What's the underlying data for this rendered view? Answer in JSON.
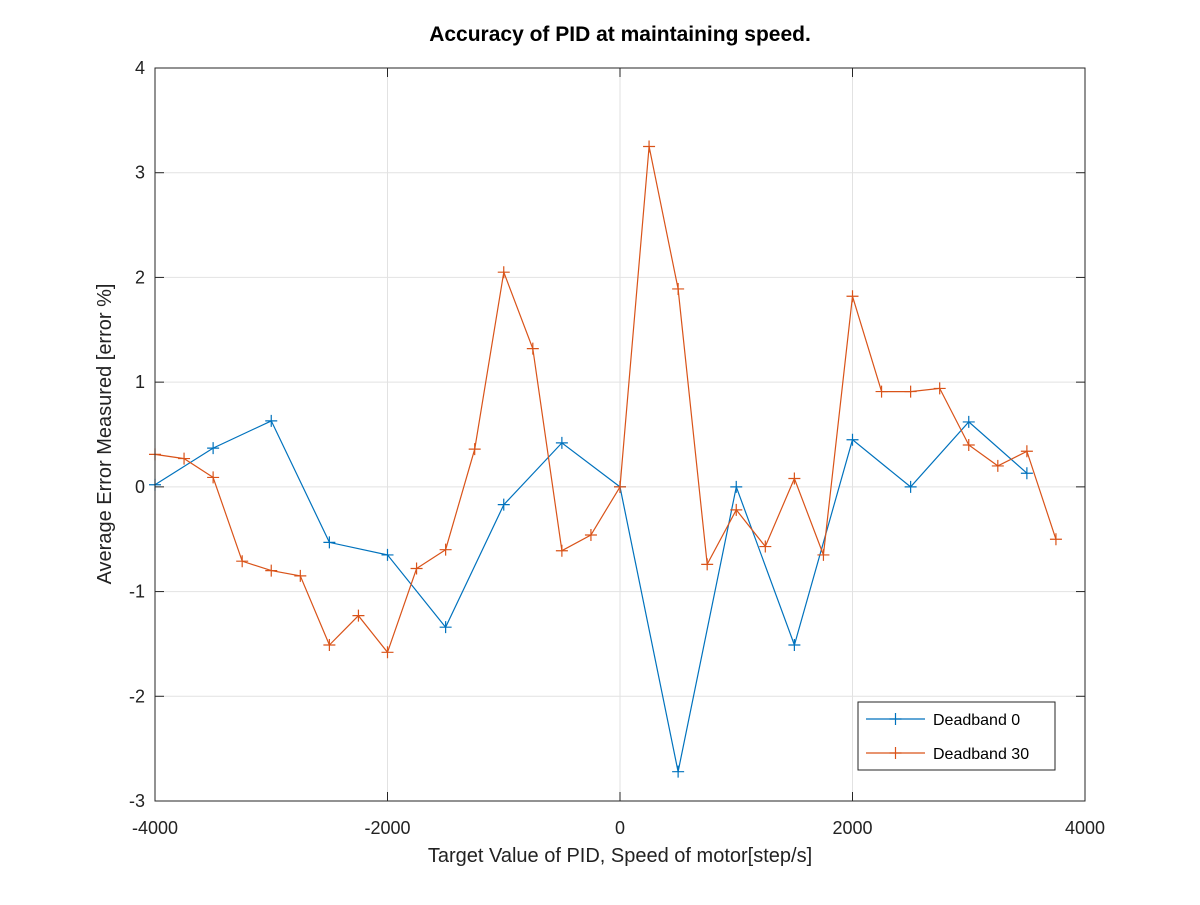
{
  "chart_data": {
    "type": "line",
    "title": "Accuracy of PID at maintaining speed.",
    "xlabel": "Target Value of PID, Speed of motor[step/s]",
    "ylabel": "Average Error Measured [error %]",
    "xlim": [
      -4000,
      4000
    ],
    "ylim": [
      -3,
      4
    ],
    "xticks": [
      -4000,
      -2000,
      0,
      2000,
      4000
    ],
    "yticks": [
      -3,
      -2,
      -1,
      0,
      1,
      2,
      3,
      4
    ],
    "grid": true,
    "legend_position": "bottom-right",
    "marker": "plus",
    "series": [
      {
        "name": "Deadband 0",
        "color": "#0072BD",
        "x": [
          -4000,
          -3500,
          -3000,
          -2500,
          -2000,
          -1500,
          -1000,
          -500,
          0,
          500,
          1000,
          1500,
          2000,
          2500,
          3000,
          3500
        ],
        "y": [
          0.02,
          0.37,
          0.63,
          -0.53,
          -0.65,
          -1.34,
          -0.17,
          0.42,
          0.0,
          -2.72,
          0.0,
          -1.51,
          0.45,
          0.0,
          0.62,
          0.13
        ]
      },
      {
        "name": "Deadband 30",
        "color": "#D95319",
        "x": [
          -4000,
          -3750,
          -3500,
          -3250,
          -3000,
          -2750,
          -2500,
          -2250,
          -2000,
          -1750,
          -1500,
          -1250,
          -1000,
          -750,
          -500,
          -250,
          0,
          250,
          500,
          750,
          1000,
          1250,
          1500,
          1750,
          2000,
          2250,
          2500,
          2750,
          3000,
          3250,
          3500,
          3750
        ],
        "y": [
          0.31,
          0.27,
          0.09,
          -0.71,
          -0.8,
          -0.85,
          -1.51,
          -1.23,
          -1.58,
          -0.78,
          -0.6,
          0.36,
          2.05,
          1.32,
          -0.61,
          -0.46,
          0.0,
          3.25,
          1.89,
          -0.74,
          -0.22,
          -0.57,
          0.08,
          -0.65,
          1.82,
          0.91,
          0.91,
          0.94,
          0.4,
          0.2,
          0.34,
          -0.5
        ]
      }
    ]
  }
}
